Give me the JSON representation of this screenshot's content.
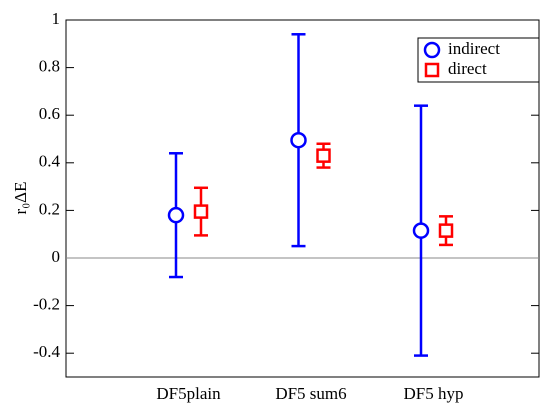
{
  "chart_data": {
    "type": "errorbar",
    "y_label": "r₀ΔE",
    "categories": [
      "DF5plain",
      "DF5 sum6",
      "DF5 hyp"
    ],
    "series": [
      {
        "name": "indirect",
        "color": "#0000ff",
        "marker": "circle",
        "values": [
          0.18,
          0.495,
          0.115
        ],
        "errors": [
          0.26,
          0.445,
          0.525
        ]
      },
      {
        "name": "direct",
        "color": "#ff0000",
        "marker": "square",
        "values": [
          0.195,
          0.43,
          0.115
        ],
        "errors": [
          0.1,
          0.05,
          0.06
        ]
      }
    ],
    "ylim": [
      -0.5,
      1
    ],
    "yticks": [
      -0.4,
      -0.2,
      0,
      0.2,
      0.4,
      0.6,
      0.8,
      1
    ],
    "zero_line": true,
    "legend": "upper right"
  }
}
